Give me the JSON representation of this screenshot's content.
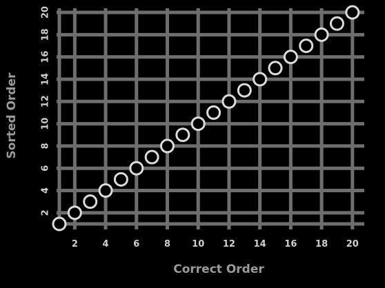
{
  "chart_data": {
    "type": "scatter",
    "xlabel": "Correct Order",
    "ylabel": "Sorted Order",
    "xlim": [
      1,
      20.5
    ],
    "ylim": [
      1,
      20
    ],
    "x_ticks": [
      2,
      4,
      6,
      8,
      10,
      12,
      14,
      16,
      18,
      20
    ],
    "y_ticks": [
      2,
      4,
      6,
      8,
      10,
      12,
      14,
      16,
      18,
      20
    ],
    "grid": true,
    "colors": {
      "background": "#000000",
      "grid": "#6e6e6e",
      "marker_edge": "#dcdcdc",
      "text": "#cfcfcf"
    },
    "series": [
      {
        "x": [
          1,
          2,
          3,
          4,
          5,
          6,
          7,
          8,
          9,
          10,
          11,
          12,
          13,
          14,
          15,
          16,
          17,
          18,
          19,
          20
        ],
        "y": [
          1,
          2,
          3,
          4,
          5,
          6,
          7,
          8,
          9,
          10,
          11,
          12,
          13,
          14,
          15,
          16,
          17,
          18,
          19,
          20
        ]
      }
    ]
  }
}
